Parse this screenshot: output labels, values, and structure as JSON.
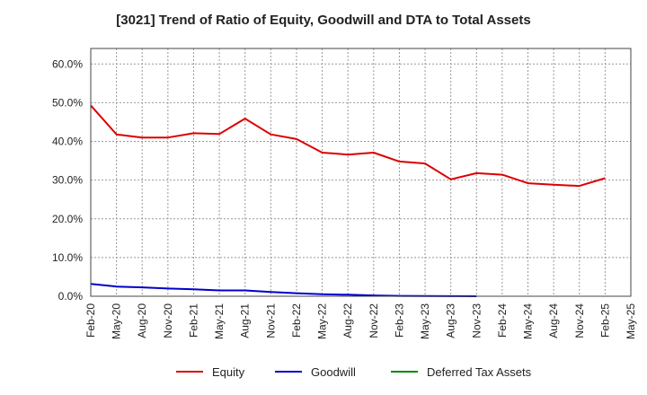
{
  "chart_data": {
    "type": "line",
    "title": "[3021]  Trend of Ratio of Equity, Goodwill and DTA to Total Assets",
    "xlabel": "",
    "ylabel": "",
    "ylim": [
      0,
      64
    ],
    "y_ticks": [
      0,
      10,
      20,
      30,
      40,
      50,
      60
    ],
    "y_tick_labels": [
      "0.0%",
      "10.0%",
      "20.0%",
      "30.0%",
      "40.0%",
      "50.0%",
      "60.0%"
    ],
    "x_tick_labels": [
      "Feb-20",
      "May-20",
      "Aug-20",
      "Nov-20",
      "Feb-21",
      "May-21",
      "Aug-21",
      "Nov-21",
      "Feb-22",
      "May-22",
      "Aug-22",
      "Nov-22",
      "Feb-23",
      "May-23",
      "Aug-23",
      "Nov-23",
      "Feb-24",
      "May-24",
      "Aug-24",
      "Nov-24",
      "Feb-25",
      "May-25"
    ],
    "grid": true,
    "legend_position": "bottom",
    "series": [
      {
        "name": "Equity",
        "color": "#dd0000",
        "values": [
          49.3,
          41.8,
          41.0,
          41.0,
          42.1,
          41.9,
          45.9,
          41.8,
          40.6,
          37.1,
          36.6,
          37.1,
          34.8,
          34.3,
          30.2,
          31.8,
          31.4,
          29.2,
          28.8,
          28.5,
          30.5
        ]
      },
      {
        "name": "Goodwill",
        "color": "#0000cc",
        "values": [
          3.2,
          2.5,
          2.3,
          2.0,
          1.8,
          1.5,
          1.5,
          1.1,
          0.8,
          0.5,
          0.4,
          0.2,
          0.1,
          0.05,
          0.02,
          0.01
        ]
      },
      {
        "name": "Deferred Tax Assets",
        "color": "#008800",
        "values": []
      }
    ]
  }
}
